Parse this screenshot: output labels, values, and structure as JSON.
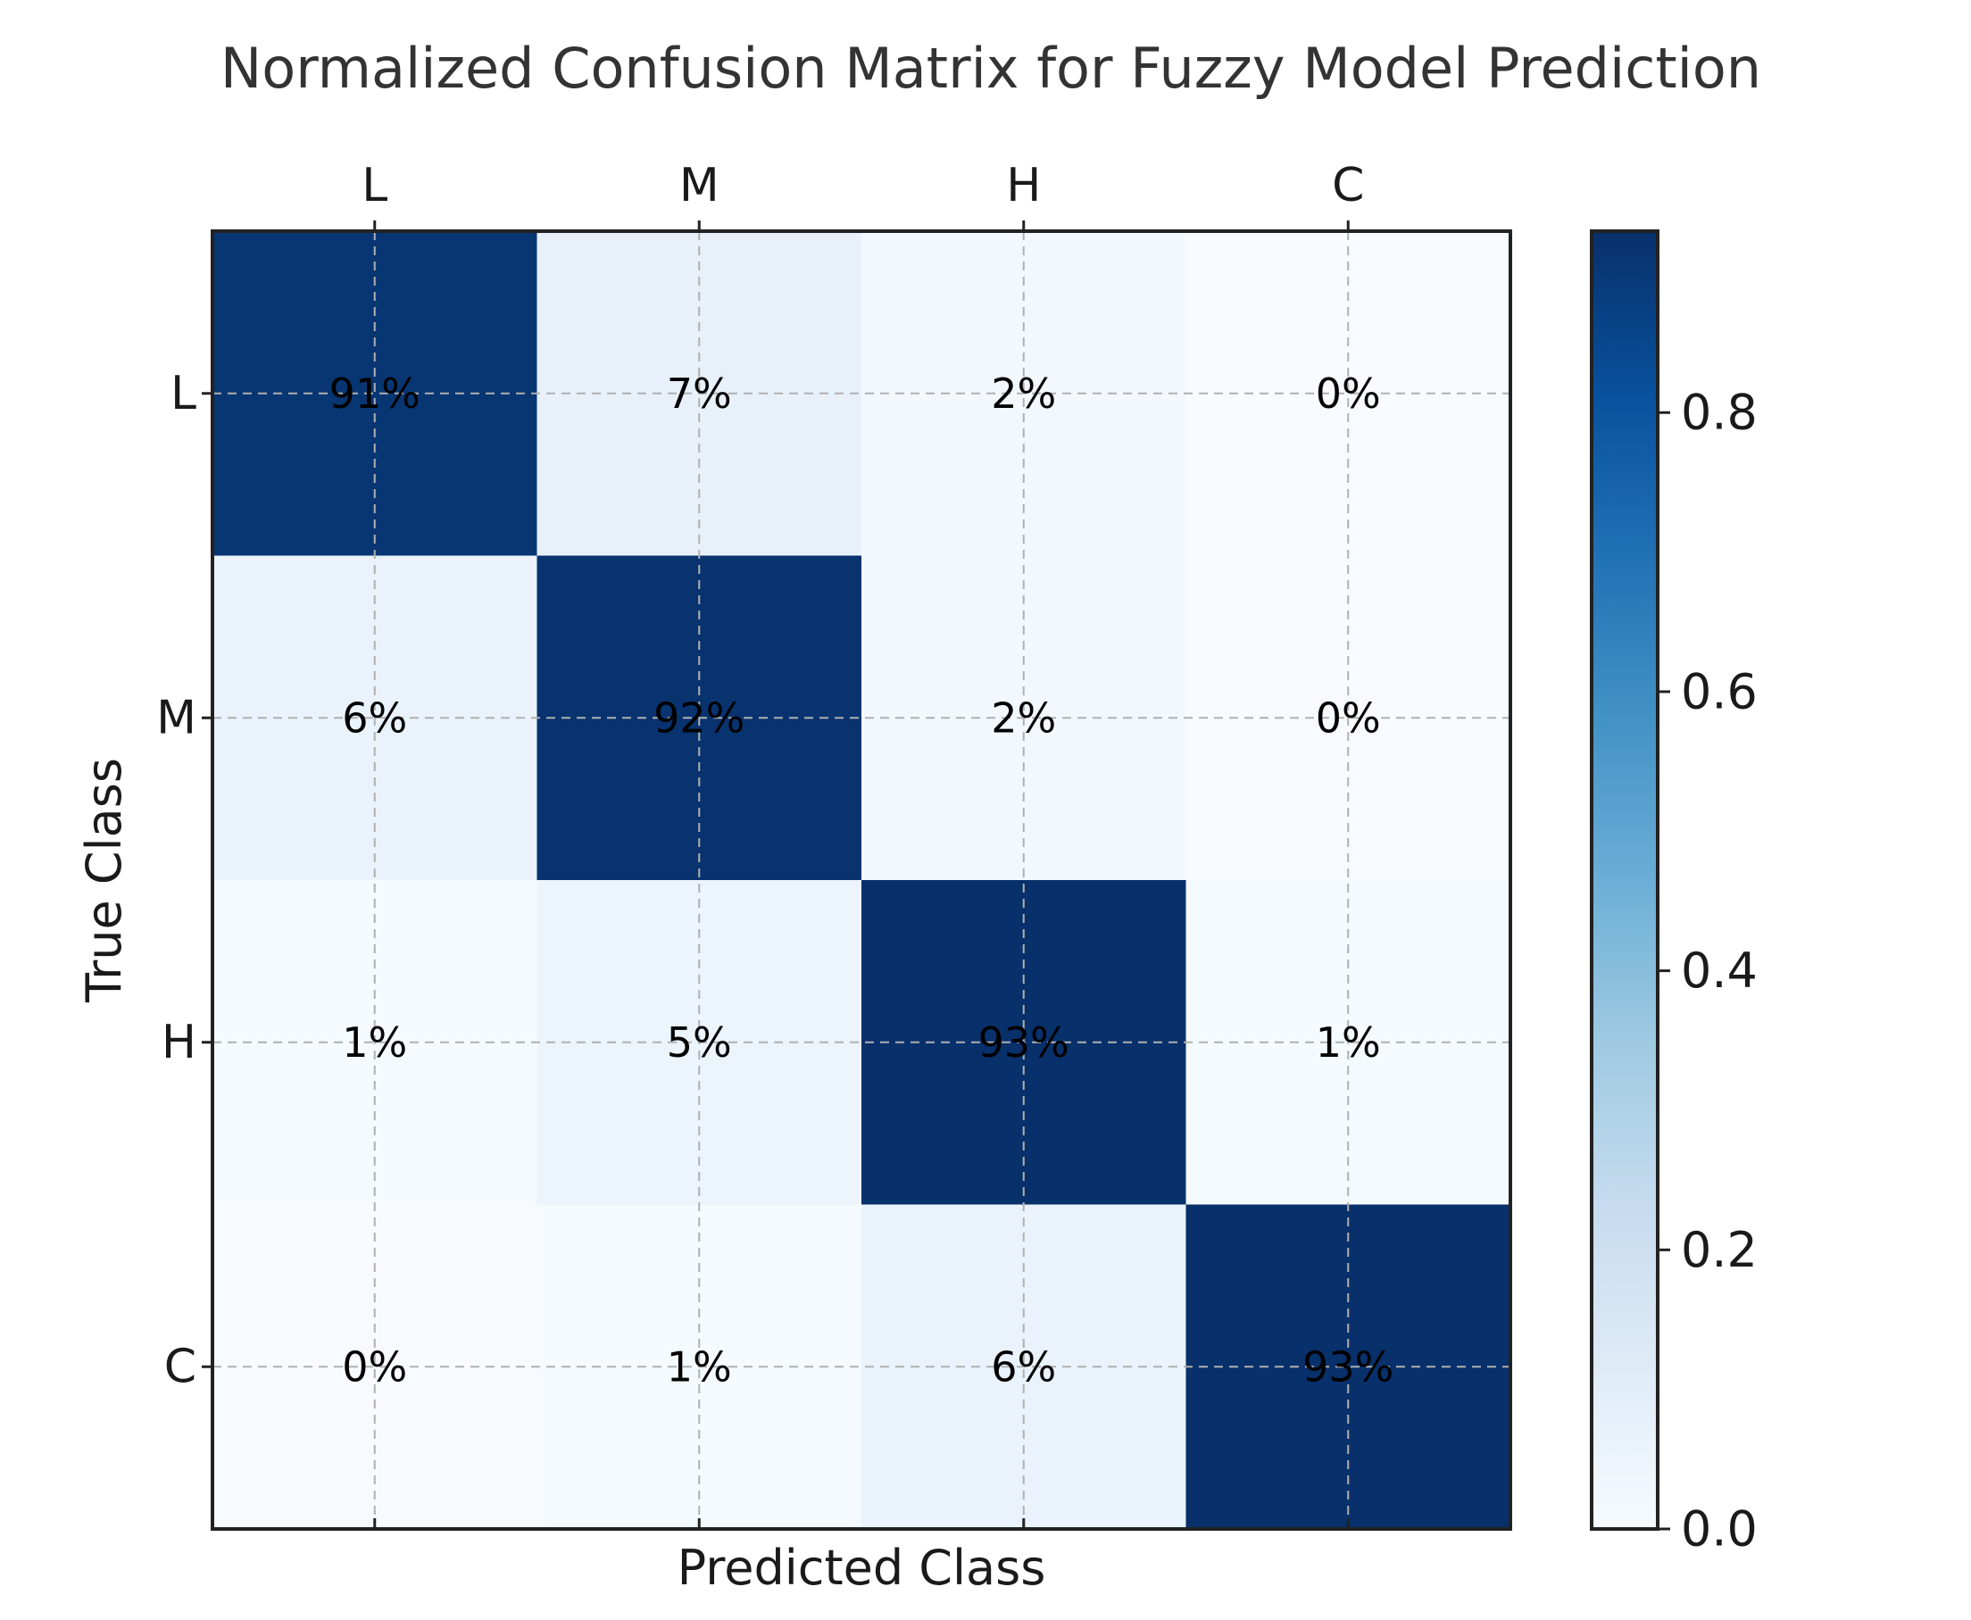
{
  "chart_data": {
    "type": "heatmap",
    "title": "Normalized Confusion Matrix for Fuzzy Model Prediction",
    "xlabel": "Predicted Class",
    "ylabel": "True Class",
    "x_categories": [
      "L",
      "M",
      "H",
      "C"
    ],
    "y_categories": [
      "L",
      "M",
      "H",
      "C"
    ],
    "values": [
      [
        0.91,
        0.07,
        0.02,
        0.0
      ],
      [
        0.06,
        0.92,
        0.02,
        0.0
      ],
      [
        0.01,
        0.05,
        0.93,
        0.01
      ],
      [
        0.0,
        0.01,
        0.06,
        0.93
      ]
    ],
    "cell_labels": [
      [
        "91%",
        "7%",
        "2%",
        "0%"
      ],
      [
        "6%",
        "92%",
        "2%",
        "0%"
      ],
      [
        "1%",
        "5%",
        "93%",
        "1%"
      ],
      [
        "0%",
        "1%",
        "6%",
        "93%"
      ]
    ],
    "colormap": "Blues",
    "colorbar": {
      "range": [
        0.0,
        0.93
      ],
      "ticks": [
        0.0,
        0.2,
        0.4,
        0.6,
        0.8
      ],
      "tick_labels": [
        "0.0",
        "0.2",
        "0.4",
        "0.6",
        "0.8"
      ],
      "placement": "right"
    },
    "x_ticks_position": "top",
    "grid": true
  }
}
